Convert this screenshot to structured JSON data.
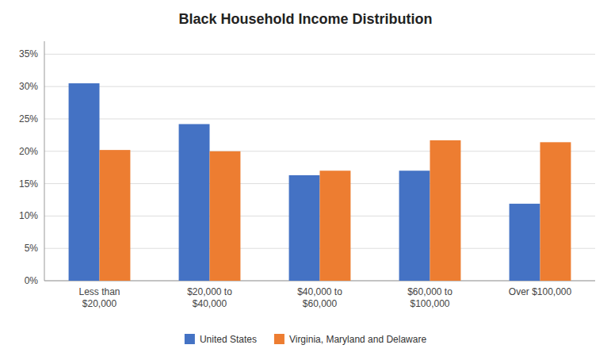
{
  "chart_data": {
    "type": "bar",
    "title": "Black Household Income Distribution",
    "categories": [
      "Less than\n$20,000",
      "$20,000 to\n$40,000",
      "$40,000 to\n$60,000",
      "$60,000 to\n$100,000",
      "Over $100,000"
    ],
    "series": [
      {
        "name": "United States",
        "color": "#4472C4",
        "values": [
          0.305,
          0.242,
          0.163,
          0.17,
          0.119
        ]
      },
      {
        "name": "Virginia, Maryland and Delaware",
        "color": "#ED7D31",
        "values": [
          0.202,
          0.2,
          0.17,
          0.217,
          0.214
        ]
      }
    ],
    "ylim": [
      0,
      0.37
    ],
    "yticks": [
      {
        "value": 0,
        "label": "0%"
      },
      {
        "value": 0.05,
        "label": "5%"
      },
      {
        "value": 0.1,
        "label": "10%"
      },
      {
        "value": 0.15,
        "label": "15%"
      },
      {
        "value": 0.2,
        "label": "20%"
      },
      {
        "value": 0.25,
        "label": "25%"
      },
      {
        "value": 0.3,
        "label": "30%"
      },
      {
        "value": 0.35,
        "label": "35%"
      }
    ],
    "grid": true,
    "legend": "bottom"
  }
}
